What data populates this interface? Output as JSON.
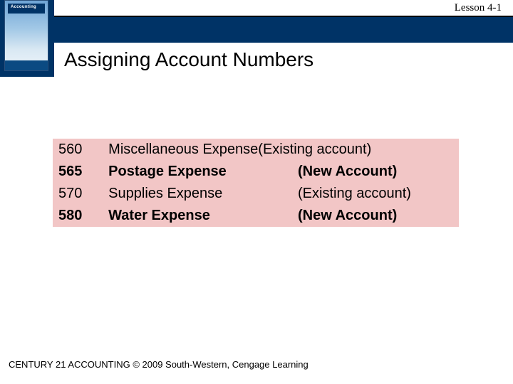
{
  "header": {
    "lesson_label": "Lesson 4-1",
    "book_text": "Accounting",
    "title": "Assigning Account Numbers",
    "colors": {
      "navy": "#003366",
      "white": "#ffffff"
    }
  },
  "table": {
    "background_color": "#f2c6c6",
    "text_color": "#000000",
    "font_size": 20,
    "rows": [
      {
        "number": "560",
        "name": "Miscellaneous Expense",
        "status": "(Existing account)",
        "bold": false,
        "merged": true
      },
      {
        "number": "565",
        "name": "Postage Expense",
        "status": "(New Account)",
        "bold": true,
        "merged": false
      },
      {
        "number": "570",
        "name": "Supplies Expense",
        "status": "(Existing account)",
        "bold": false,
        "merged": false
      },
      {
        "number": "580",
        "name": "Water Expense",
        "status": "(New Account)",
        "bold": true,
        "merged": false
      }
    ]
  },
  "footer": {
    "text": "CENTURY 21 ACCOUNTING © 2009 South-Western, Cengage Learning"
  }
}
